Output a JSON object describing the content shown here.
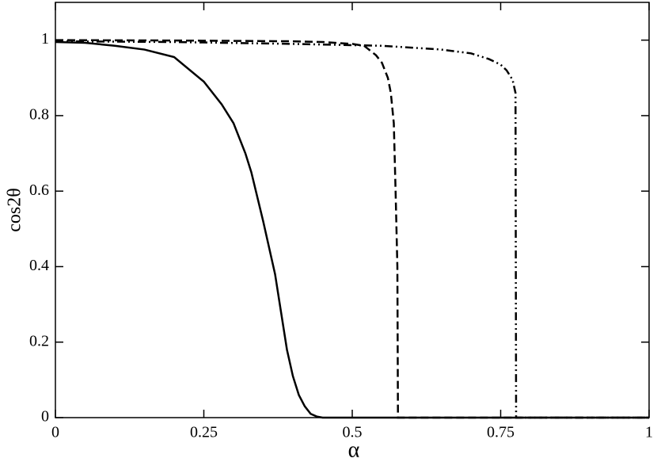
{
  "chart_data": {
    "type": "line",
    "x_label": "α",
    "y_label": "cos2θ",
    "xlim": [
      0,
      1
    ],
    "ylim": [
      0,
      1.1
    ],
    "xticks": [
      0,
      0.25,
      0.5,
      0.75,
      1
    ],
    "yticks": [
      0,
      0.2,
      0.4,
      0.6,
      0.8,
      1
    ],
    "series": [
      {
        "color": "#000000",
        "dash": "solid",
        "x": [
          0,
          0.05,
          0.1,
          0.15,
          0.2,
          0.25,
          0.28,
          0.3,
          0.32,
          0.33,
          0.35,
          0.37,
          0.38,
          0.39,
          0.4,
          0.41,
          0.42,
          0.43,
          0.44,
          0.45,
          0.5,
          0.75,
          1
        ],
        "values": [
          0.995,
          0.993,
          0.985,
          0.975,
          0.955,
          0.89,
          0.83,
          0.78,
          0.7,
          0.65,
          0.52,
          0.38,
          0.28,
          0.18,
          0.11,
          0.06,
          0.03,
          0.01,
          0.003,
          0,
          0,
          0,
          1e-09
        ]
      },
      {
        "color": "#000000",
        "dash": "dashed",
        "x": [
          0,
          0.2,
          0.4,
          0.45,
          0.5,
          0.52,
          0.54,
          0.55,
          0.56,
          0.565,
          0.57,
          0.573,
          0.576,
          0.577,
          0.6,
          0.8,
          1
        ],
        "values": [
          1,
          0.999,
          0.997,
          0.995,
          0.99,
          0.985,
          0.96,
          0.94,
          0.9,
          0.86,
          0.78,
          0.6,
          0.4,
          0,
          0,
          0,
          0
        ]
      },
      {
        "color": "#000000",
        "dash": "dashdot",
        "x": [
          0,
          0.2,
          0.4,
          0.55,
          0.65,
          0.7,
          0.73,
          0.75,
          0.76,
          0.77,
          0.775,
          0.776,
          0.8,
          1
        ],
        "values": [
          0.997,
          0.995,
          0.99,
          0.985,
          0.975,
          0.965,
          0.95,
          0.935,
          0.92,
          0.895,
          0.86,
          0,
          0,
          0
        ]
      }
    ]
  }
}
